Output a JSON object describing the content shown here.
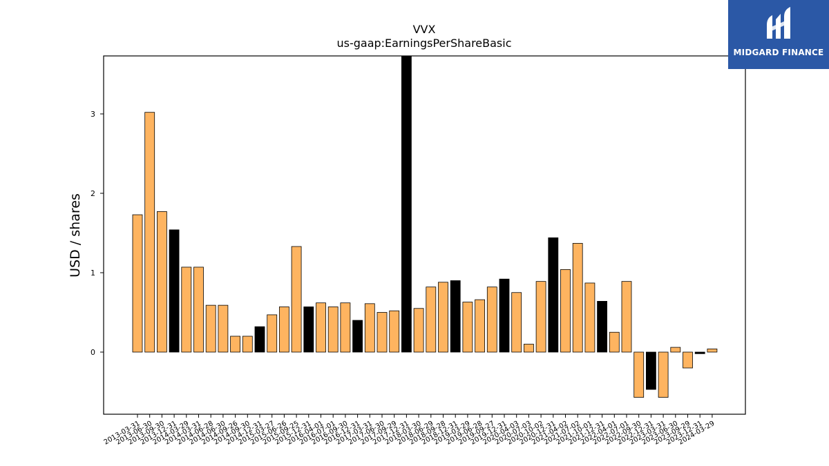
{
  "logo": {
    "text": "MIDGARD FINANCE",
    "background": "#2b58a6"
  },
  "chart_data": {
    "type": "bar",
    "title": "VVX",
    "subtitle": "us-gaap:EarningsPerShareBasic",
    "xlabel": "",
    "ylabel": "USD / shares",
    "ylim": [
      -0.8,
      3.75
    ],
    "yticks": [
      0,
      1,
      2,
      3
    ],
    "grid": false,
    "legend": "none",
    "colors": {
      "normal": "#feb460",
      "highlight": "#000000",
      "edge": "#000000"
    },
    "categories": [
      "2013-03-31",
      "2013-06-30",
      "2013-09-30",
      "2013-12-31",
      "2014-03-29",
      "2014-03-31",
      "2014-06-28",
      "2014-06-30",
      "2014-09-26",
      "2014-09-30",
      "2014-12-31",
      "2015-03-27",
      "2015-06-26",
      "2015-09-25",
      "2015-12-31",
      "2016-04-01",
      "2016-07-01",
      "2016-09-30",
      "2016-12-31",
      "2017-03-31",
      "2017-06-30",
      "2017-09-29",
      "2017-12-31",
      "2018-03-30",
      "2018-06-29",
      "2018-09-28",
      "2018-12-31",
      "2019-03-29",
      "2019-06-28",
      "2019-09-27",
      "2019-12-31",
      "2020-04-03",
      "2020-07-03",
      "2020-10-02",
      "2020-12-31",
      "2021-04-02",
      "2021-07-02",
      "2021-10-01",
      "2021-12-31",
      "2022-04-01",
      "2022-07-01",
      "2022-09-30",
      "2022-12-31",
      "2023-03-31",
      "2023-06-30",
      "2023-09-29",
      "2023-12-31",
      "2024-03-29"
    ],
    "values": [
      1.73,
      3.02,
      1.77,
      1.54,
      1.07,
      1.07,
      0.59,
      0.59,
      0.2,
      0.2,
      0.32,
      0.47,
      0.57,
      1.33,
      0.57,
      0.62,
      0.57,
      0.62,
      0.4,
      0.61,
      0.5,
      0.52,
      3.75,
      0.55,
      0.82,
      0.88,
      0.9,
      0.63,
      0.66,
      0.82,
      0.92,
      0.75,
      0.1,
      0.89,
      1.44,
      1.04,
      1.37,
      0.87,
      0.64,
      0.25,
      0.89,
      -0.57,
      -0.47,
      -0.57,
      0.06,
      -0.2,
      -0.02,
      0.04
    ],
    "highlight": [
      false,
      false,
      false,
      true,
      false,
      false,
      false,
      false,
      false,
      false,
      true,
      false,
      false,
      false,
      true,
      false,
      false,
      false,
      true,
      false,
      false,
      false,
      true,
      false,
      false,
      false,
      true,
      false,
      false,
      false,
      true,
      false,
      false,
      false,
      true,
      false,
      false,
      false,
      true,
      false,
      false,
      false,
      true,
      false,
      false,
      false,
      true,
      false
    ]
  }
}
